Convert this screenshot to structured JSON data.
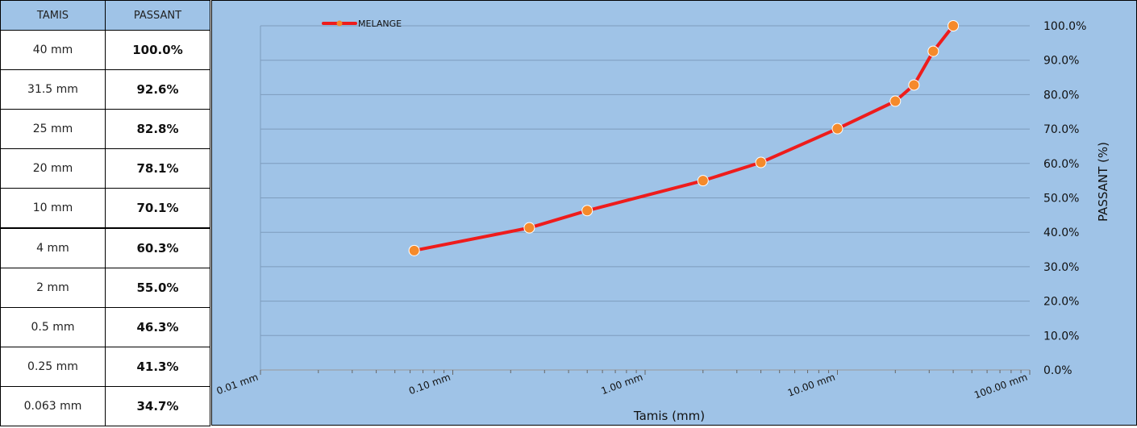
{
  "table": {
    "headers": [
      "TAMIS",
      "PASSANT"
    ],
    "rows": [
      {
        "tamis": "40 mm",
        "passant": "100.0%"
      },
      {
        "tamis": "31.5 mm",
        "passant": "92.6%"
      },
      {
        "tamis": "25 mm",
        "passant": "82.8%"
      },
      {
        "tamis": "20 mm",
        "passant": "78.1%"
      },
      {
        "tamis": "10 mm",
        "passant": "70.1%"
      },
      {
        "tamis": "4 mm",
        "passant": "60.3%"
      },
      {
        "tamis": "2 mm",
        "passant": "55.0%"
      },
      {
        "tamis": "0.5 mm",
        "passant": "46.3%"
      },
      {
        "tamis": "0.25 mm",
        "passant": "41.3%"
      },
      {
        "tamis": "0.063 mm",
        "passant": "34.7%"
      }
    ]
  },
  "chart_data": {
    "type": "line",
    "x_scale": "log",
    "xlim": [
      0.01,
      100
    ],
    "ylim": [
      0,
      100
    ],
    "xlabel": "Tamis (mm)",
    "ylabel": "PASSANT (%)",
    "x_ticks": [
      "0.01 mm",
      "0.10 mm",
      "1.00 mm",
      "10.00 mm",
      "100.00 mm"
    ],
    "y_ticks": [
      "0.0%",
      "10.0%",
      "20.0%",
      "30.0%",
      "40.0%",
      "50.0%",
      "60.0%",
      "70.0%",
      "80.0%",
      "90.0%",
      "100.0%"
    ],
    "legend_position": "top-left",
    "grid": true,
    "background_color": "#9fc3e7",
    "series": [
      {
        "name": "MELANGE",
        "line_color": "#ee1c1c",
        "marker_color": "#f58a2b",
        "x": [
          40,
          31.5,
          25,
          20,
          10,
          4,
          2,
          0.5,
          0.25,
          0.063
        ],
        "y": [
          100.0,
          92.6,
          82.8,
          78.1,
          70.1,
          60.3,
          55.0,
          46.3,
          41.3,
          34.7
        ]
      }
    ]
  }
}
